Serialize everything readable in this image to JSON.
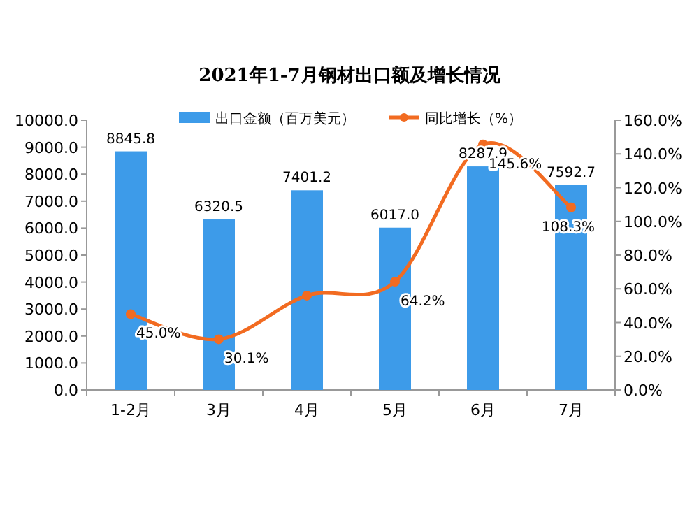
{
  "chart_data": {
    "type": "bar",
    "title": "2021年1-7月钢材出口额及增长情况",
    "categories": [
      "1-2月",
      "3月",
      "4月",
      "5月",
      "6月",
      "7月"
    ],
    "series": [
      {
        "name": "出口金额（百万美元）",
        "color": "#3d9be9",
        "values": [
          8845.8,
          6320.5,
          7401.2,
          6017.0,
          8287.9,
          7592.7
        ],
        "value_labels": [
          "8845.8",
          "6320.5",
          "7401.2",
          "6017.0",
          "8287.9",
          "7592.7"
        ]
      },
      {
        "name": "同比增长（%）",
        "type": "line",
        "axis": "y2",
        "color": "#f26b21",
        "values": [
          45.0,
          30.1,
          56,
          64.2,
          145.6,
          108.3
        ],
        "value_labels": [
          "45.0%",
          "30.1%",
          null,
          "64.2%",
          "145.6%",
          "108.3%"
        ]
      }
    ],
    "ylim": [
      0,
      10000
    ],
    "yticks": [
      {
        "value": 0,
        "label": "0.0"
      },
      {
        "value": 1000,
        "label": "1000.0"
      },
      {
        "value": 2000,
        "label": "2000.0"
      },
      {
        "value": 3000,
        "label": "3000.0"
      },
      {
        "value": 4000,
        "label": "4000.0"
      },
      {
        "value": 5000,
        "label": "5000.0"
      },
      {
        "value": 6000,
        "label": "6000.0"
      },
      {
        "value": 7000,
        "label": "7000.0"
      },
      {
        "value": 8000,
        "label": "8000.0"
      },
      {
        "value": 9000,
        "label": "9000.0"
      },
      {
        "value": 10000,
        "label": "10000.0"
      }
    ],
    "y2lim": [
      0,
      160
    ],
    "y2ticks": [
      {
        "value": 0,
        "label": "0.0%"
      },
      {
        "value": 20,
        "label": "20.0%"
      },
      {
        "value": 40,
        "label": "40.0%"
      },
      {
        "value": 60,
        "label": "60.0%"
      },
      {
        "value": 80,
        "label": "80.0%"
      },
      {
        "value": 100,
        "label": "100.0%"
      },
      {
        "value": 120,
        "label": "120.0%"
      },
      {
        "value": 140,
        "label": "140.0%"
      },
      {
        "value": 160,
        "label": "160.0%"
      }
    ],
    "marker": "circle",
    "grid": false,
    "legend": "top"
  }
}
